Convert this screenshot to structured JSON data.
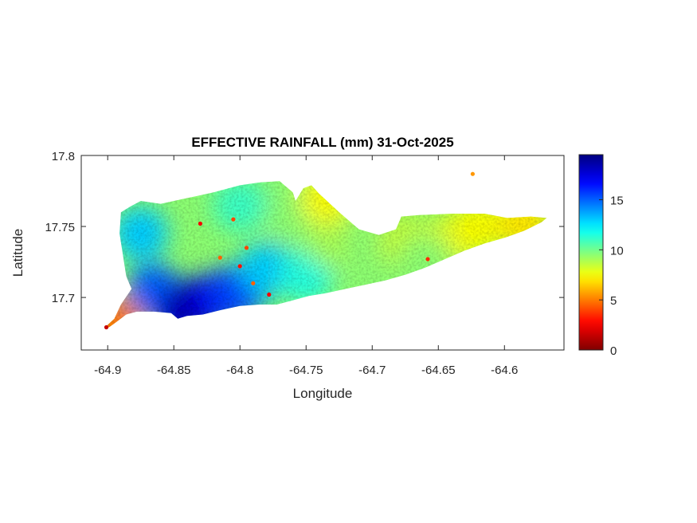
{
  "chart_data": {
    "type": "heatmap",
    "title": "EFFECTIVE RAINFALL (mm) 31-Oct-2025",
    "xlabel": "Longitude",
    "ylabel": "Latitude",
    "xlim": [
      -64.92,
      -64.555
    ],
    "ylim": [
      17.663,
      17.8
    ],
    "xticks": [
      -64.9,
      -64.85,
      -64.8,
      -64.75,
      -64.7,
      -64.65,
      -64.6
    ],
    "xtick_labels": [
      "-64.9",
      "-64.85",
      "-64.8",
      "-64.75",
      "-64.7",
      "-64.65",
      "-64.6"
    ],
    "yticks": [
      17.7,
      17.75,
      17.8
    ],
    "ytick_labels": [
      "17.7",
      "17.75",
      "17.8"
    ],
    "colorbar": {
      "colormap": "jet",
      "clim": [
        0,
        19.5
      ],
      "ticks": [
        0,
        5,
        10,
        15
      ],
      "tick_labels": [
        "0",
        "5",
        "10",
        "15"
      ],
      "color_stops": [
        "#800000",
        "#ff0000",
        "#ffff00",
        "#00ffff",
        "#0000ff",
        "#000080"
      ]
    },
    "island_outline_lonlat": [
      [
        -64.899,
        17.679
      ],
      [
        -64.893,
        17.683
      ],
      [
        -64.886,
        17.688
      ],
      [
        -64.878,
        17.69
      ],
      [
        -64.865,
        17.69
      ],
      [
        -64.852,
        17.689
      ],
      [
        -64.847,
        17.685
      ],
      [
        -64.84,
        17.687
      ],
      [
        -64.828,
        17.688
      ],
      [
        -64.815,
        17.691
      ],
      [
        -64.8,
        17.694
      ],
      [
        -64.785,
        17.695
      ],
      [
        -64.772,
        17.695
      ],
      [
        -64.76,
        17.698
      ],
      [
        -64.748,
        17.701
      ],
      [
        -64.735,
        17.703
      ],
      [
        -64.72,
        17.706
      ],
      [
        -64.705,
        17.709
      ],
      [
        -64.69,
        17.712
      ],
      [
        -64.675,
        17.716
      ],
      [
        -64.66,
        17.721
      ],
      [
        -64.645,
        17.727
      ],
      [
        -64.63,
        17.733
      ],
      [
        -64.615,
        17.738
      ],
      [
        -64.6,
        17.742
      ],
      [
        -64.585,
        17.747
      ],
      [
        -64.572,
        17.753
      ],
      [
        -64.568,
        17.756
      ],
      [
        -64.58,
        17.757
      ],
      [
        -64.598,
        17.756
      ],
      [
        -64.615,
        17.759
      ],
      [
        -64.64,
        17.759
      ],
      [
        -64.665,
        17.758
      ],
      [
        -64.678,
        17.757
      ],
      [
        -64.682,
        17.748
      ],
      [
        -64.695,
        17.744
      ],
      [
        -64.71,
        17.748
      ],
      [
        -64.725,
        17.76
      ],
      [
        -64.74,
        17.773
      ],
      [
        -64.746,
        17.779
      ],
      [
        -64.752,
        17.777
      ],
      [
        -64.758,
        17.768
      ],
      [
        -64.76,
        17.774
      ],
      [
        -64.77,
        17.782
      ],
      [
        -64.785,
        17.781
      ],
      [
        -64.8,
        17.779
      ],
      [
        -64.82,
        17.774
      ],
      [
        -64.84,
        17.77
      ],
      [
        -64.86,
        17.766
      ],
      [
        -64.875,
        17.768
      ],
      [
        -64.883,
        17.764
      ],
      [
        -64.89,
        17.76
      ],
      [
        -64.891,
        17.745
      ],
      [
        -64.886,
        17.715
      ],
      [
        -64.882,
        17.706
      ],
      [
        -64.89,
        17.695
      ],
      [
        -64.895,
        17.685
      ],
      [
        -64.902,
        17.679
      ]
    ],
    "rainfall_anchor_points": [
      {
        "lon": -64.875,
        "lat": 17.745,
        "mm": 13.0
      },
      {
        "lon": -64.865,
        "lat": 17.705,
        "mm": 15.0
      },
      {
        "lon": -64.845,
        "lat": 17.69,
        "mm": 17.5
      },
      {
        "lon": -64.835,
        "lat": 17.695,
        "mm": 18.5
      },
      {
        "lon": -64.815,
        "lat": 17.7,
        "mm": 17.0
      },
      {
        "lon": -64.8,
        "lat": 17.705,
        "mm": 15.5
      },
      {
        "lon": -64.78,
        "lat": 17.72,
        "mm": 13.0
      },
      {
        "lon": -64.8,
        "lat": 17.765,
        "mm": 11.0
      },
      {
        "lon": -64.76,
        "lat": 17.76,
        "mm": 9.5
      },
      {
        "lon": -64.75,
        "lat": 17.715,
        "mm": 11.5
      },
      {
        "lon": -64.73,
        "lat": 17.74,
        "mm": 9.0
      },
      {
        "lon": -64.7,
        "lat": 17.735,
        "mm": 9.5
      },
      {
        "lon": -64.675,
        "lat": 17.74,
        "mm": 8.5
      },
      {
        "lon": -64.64,
        "lat": 17.74,
        "mm": 8.0
      },
      {
        "lon": -64.62,
        "lat": 17.75,
        "mm": 7.5
      },
      {
        "lon": -64.585,
        "lat": 17.752,
        "mm": 7.0
      },
      {
        "lon": -64.735,
        "lat": 17.77,
        "mm": 7.5
      },
      {
        "lon": -64.66,
        "lat": 17.725,
        "mm": 9.5
      },
      {
        "lon": -64.895,
        "lat": 17.682,
        "mm": 5.0
      }
    ],
    "low_rainfall_spots": [
      {
        "lon": -64.901,
        "lat": 17.679,
        "mm": 1.5
      },
      {
        "lon": -64.83,
        "lat": 17.752,
        "mm": 2.5
      },
      {
        "lon": -64.805,
        "lat": 17.755,
        "mm": 4.0
      },
      {
        "lon": -64.795,
        "lat": 17.735,
        "mm": 4.0
      },
      {
        "lon": -64.8,
        "lat": 17.722,
        "mm": 3.0
      },
      {
        "lon": -64.815,
        "lat": 17.728,
        "mm": 4.5
      },
      {
        "lon": -64.79,
        "lat": 17.71,
        "mm": 4.5
      },
      {
        "lon": -64.778,
        "lat": 17.702,
        "mm": 2.5
      },
      {
        "lon": -64.658,
        "lat": 17.727,
        "mm": 3.5
      },
      {
        "lon": -64.624,
        "lat": 17.787,
        "mm": 5.5
      }
    ]
  }
}
